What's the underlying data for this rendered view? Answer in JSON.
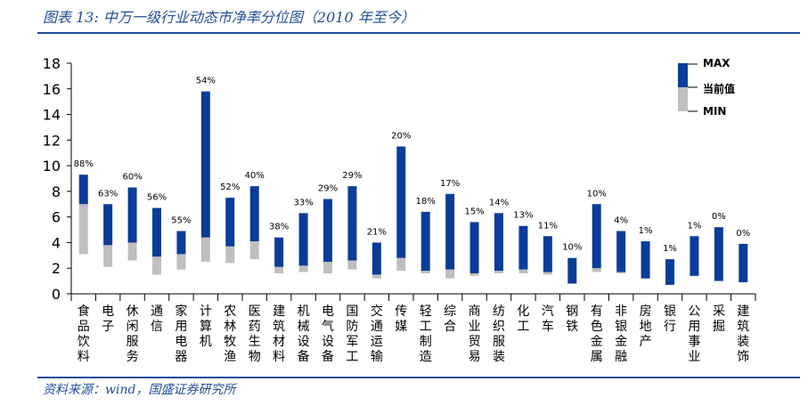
{
  "header": {
    "title": "图表 13:  中万一级行业动态市净率分位图（2010 年至今）"
  },
  "footer": {
    "source": "资料来源：wind，国盛证券研究所"
  },
  "colors": {
    "range": "#0a3d99",
    "below_current": "#bfbfbf",
    "title": "#1f4e9a"
  },
  "chart_data": {
    "type": "bar",
    "subtype": "floating-range",
    "ylim": [
      0,
      18
    ],
    "yticks": [
      "0",
      "2",
      "4",
      "6",
      "8",
      "10",
      "12",
      "14",
      "16",
      "18"
    ],
    "legend": [
      "MAX",
      "当前值",
      "MIN"
    ],
    "legend_position": "top-right",
    "categories": [
      "食品饮料",
      "电子",
      "休闲服务",
      "通信",
      "家用电器",
      "计算机",
      "农林牧渔",
      "医药生物",
      "建筑材料",
      "机械设备",
      "电气设备",
      "国防军工",
      "交通运输",
      "传媒",
      "轻工制造",
      "综合",
      "商业贸易",
      "纺织服装",
      "化工",
      "汽车",
      "钢铁",
      "有色金属",
      "非银金融",
      "房地产",
      "银行",
      "公用事业",
      "采掘",
      "建筑装饰"
    ],
    "max": [
      9.3,
      7.0,
      8.3,
      6.7,
      4.9,
      15.8,
      7.5,
      8.4,
      4.4,
      6.3,
      7.4,
      8.4,
      4.0,
      11.5,
      6.4,
      7.8,
      5.6,
      6.3,
      5.3,
      4.5,
      2.8,
      7.0,
      4.9,
      4.1,
      2.7,
      4.5,
      5.2,
      3.9
    ],
    "current": [
      7.0,
      3.8,
      4.0,
      2.9,
      3.1,
      4.4,
      3.7,
      4.1,
      2.1,
      2.2,
      2.5,
      2.6,
      1.5,
      2.8,
      1.8,
      1.9,
      1.6,
      1.8,
      1.9,
      1.7,
      0.8,
      2.0,
      1.7,
      1.2,
      0.7,
      1.4,
      1.0,
      0.9
    ],
    "min": [
      3.1,
      2.1,
      2.6,
      1.5,
      1.9,
      2.5,
      2.4,
      2.7,
      1.6,
      1.7,
      1.6,
      1.9,
      1.2,
      1.8,
      1.6,
      1.2,
      1.4,
      1.6,
      1.6,
      1.5,
      0.8,
      1.7,
      1.6,
      1.2,
      0.7,
      1.4,
      1.0,
      0.9
    ],
    "percentile_labels": [
      "88%",
      "63%",
      "60%",
      "56%",
      "55%",
      "54%",
      "52%",
      "40%",
      "38%",
      "33%",
      "29%",
      "29%",
      "21%",
      "20%",
      "18%",
      "17%",
      "15%",
      "14%",
      "13%",
      "11%",
      "10%",
      "10%",
      "4%",
      "1%",
      "1%",
      "1%",
      "0%",
      "0%"
    ]
  }
}
